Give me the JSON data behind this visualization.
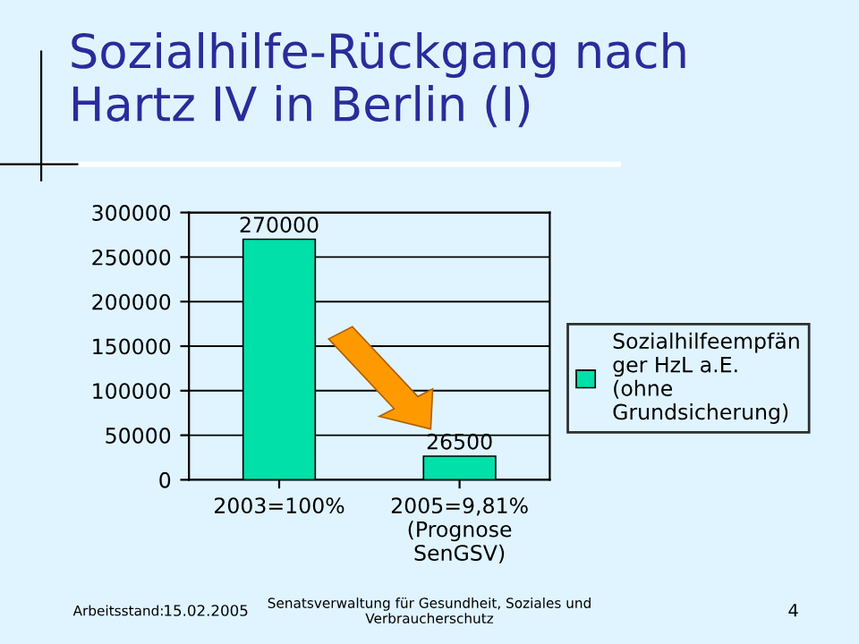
{
  "chart_data": {
    "type": "bar",
    "title": "Sozialhilfe-Rückgang nach\nHartz IV in Berlin (I)",
    "categories": [
      "2003=100%",
      "2005=9,81%\n(Prognose\nSenGSV)"
    ],
    "series": [
      {
        "name": "Sozialhilfeempfän\nger HzL a.E.\n(ohne\nGrundsicherung)",
        "color": "#00e0a8",
        "values": [
          270000,
          26500
        ]
      }
    ],
    "ylim": [
      0,
      300000
    ],
    "yticks": [
      0,
      50000,
      100000,
      150000,
      200000,
      250000,
      300000
    ],
    "grid": "y",
    "legend": "right",
    "data_labels": true,
    "annotations": [
      "Arbeitsstand:",
      "15.02.2005",
      "Senatsverwaltung für Gesundheit, Soziales und\nVerbraucherschutz",
      "4"
    ]
  }
}
